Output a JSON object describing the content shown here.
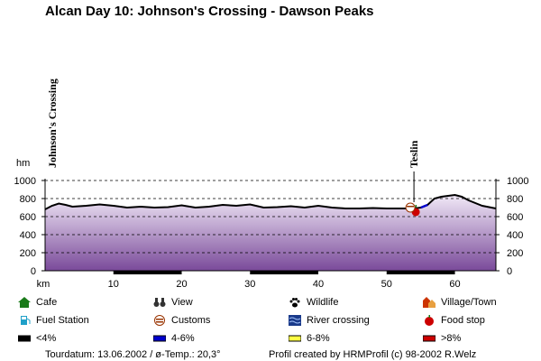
{
  "title": "Alcan Day 10: Johnson's Crossing - Dawson Peaks",
  "chart_data": {
    "type": "area",
    "yunit": "hm",
    "xunit": "km",
    "xlim": [
      0,
      66
    ],
    "ylim": [
      0,
      1000
    ],
    "yticks": [
      0,
      200,
      400,
      600,
      800,
      1000
    ],
    "xticks": [
      10,
      20,
      30,
      40,
      50,
      60
    ],
    "grid": "horizontal dashed",
    "places": [
      {
        "name": "Johnson's Crossing",
        "km": 0
      },
      {
        "name": "Teslin",
        "km": 54
      }
    ],
    "series": [
      {
        "name": "elevation",
        "x": [
          0,
          1,
          2,
          3,
          4,
          6,
          8,
          10,
          12,
          14,
          16,
          18,
          20,
          22,
          24,
          26,
          28,
          30,
          32,
          34,
          36,
          38,
          40,
          42,
          44,
          46,
          48,
          50,
          52,
          54,
          55,
          56,
          57,
          58,
          60,
          61,
          62,
          64,
          66
        ],
        "y": [
          680,
          720,
          745,
          730,
          710,
          720,
          735,
          720,
          700,
          710,
          700,
          705,
          725,
          700,
          710,
          730,
          720,
          735,
          700,
          705,
          715,
          700,
          720,
          700,
          690,
          690,
          695,
          690,
          690,
          690,
          700,
          730,
          800,
          820,
          840,
          820,
          780,
          720,
          690
        ]
      }
    ],
    "grade_segments": [
      {
        "label": "<4%",
        "from_km": 0,
        "to_km": 54
      },
      {
        "label": "4-6%",
        "from_km": 55,
        "to_km": 56.5
      },
      {
        "label": "6-8%",
        "from_km": 56.5,
        "to_km": 57.5
      }
    ],
    "sectors": [
      {
        "from_km": 10,
        "to_km": 20
      },
      {
        "from_km": 30,
        "to_km": 40
      },
      {
        "from_km": 50,
        "to_km": 60
      }
    ],
    "markers": [
      {
        "type": "Food stop",
        "km": 54,
        "y": 790
      },
      {
        "type": "Customs",
        "km": 54,
        "y": 700
      }
    ],
    "colors": {
      "area_top": "#f1e9f7",
      "area_bottom": "#7a4a9a",
      "line": "#000000",
      "grade_4_6": "#0000cc",
      "grade_6_8": "#ffff44",
      "grade_gt8": "#cc0000"
    }
  },
  "legend": [
    {
      "label": "Cafe",
      "icon": "house-icon",
      "color": "#1a7a1a"
    },
    {
      "label": "View",
      "icon": "binoculars-icon",
      "color": "#333333"
    },
    {
      "label": "Wildlife",
      "icon": "paw-icon",
      "color": "#000000"
    },
    {
      "label": "Village/Town",
      "icon": "village-icon",
      "color": "#cc3300"
    },
    {
      "label": "Fuel Station",
      "icon": "fuel-pump-icon",
      "color": "#1fa0c8"
    },
    {
      "label": "Customs",
      "icon": "customs-icon",
      "color": "#993300"
    },
    {
      "label": "River crossing",
      "icon": "river-icon",
      "color": "#1a3a8a"
    },
    {
      "label": "Food stop",
      "icon": "apple-icon",
      "color": "#cc0000"
    },
    {
      "label": "<4%",
      "icon": "grade-swatch",
      "color": "#000000"
    },
    {
      "label": "4-6%",
      "icon": "grade-swatch",
      "color": "#0000cc"
    },
    {
      "label": "6-8%",
      "icon": "grade-swatch",
      "color": "#ffff44"
    },
    {
      "label": ">8%",
      "icon": "grade-swatch",
      "color": "#cc0000"
    }
  ],
  "footer": {
    "date": "Tourdatum: 13.06.2002  /  ø-Temp.: 20,3°",
    "credit": "Profil created by HRMProfil (c) 98-2002 R.Welz"
  }
}
